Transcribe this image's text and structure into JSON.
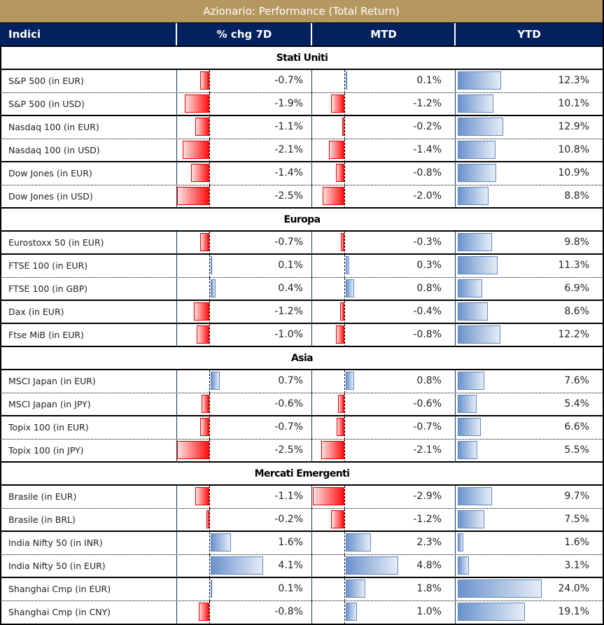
{
  "title": "Azionario: Performance (Total Return)",
  "columns": [
    "Indici",
    "% chg 7D",
    "MTD",
    "YTD"
  ],
  "colors": {
    "title_bg": "#b5985f",
    "header_bg": "#03215f",
    "negative": "#ff1010",
    "positive": "#6a92cc"
  },
  "sections": [
    {
      "name": "Stati Uniti",
      "rows": [
        {
          "name": "S&P 500 (in EUR)",
          "chg7d": -0.7,
          "chg7d_label": "-0.7%",
          "mtd": 0.1,
          "mtd_label": "0.1%",
          "ytd": 12.3,
          "ytd_label": "12.3%",
          "border": "dot"
        },
        {
          "name": "S&P 500 (in USD)",
          "chg7d": -1.9,
          "chg7d_label": "-1.9%",
          "mtd": -1.2,
          "mtd_label": "-1.2%",
          "ytd": 10.1,
          "ytd_label": "10.1%",
          "border": "solid"
        },
        {
          "name": "Nasdaq 100 (in EUR)",
          "chg7d": -1.1,
          "chg7d_label": "-1.1%",
          "mtd": -0.2,
          "mtd_label": "-0.2%",
          "ytd": 12.9,
          "ytd_label": "12.9%",
          "border": "dot"
        },
        {
          "name": "Nasdaq 100 (in USD)",
          "chg7d": -2.1,
          "chg7d_label": "-2.1%",
          "mtd": -1.4,
          "mtd_label": "-1.4%",
          "ytd": 10.8,
          "ytd_label": "10.8%",
          "border": "solid"
        },
        {
          "name": "Dow Jones (in EUR)",
          "chg7d": -1.4,
          "chg7d_label": "-1.4%",
          "mtd": -0.8,
          "mtd_label": "-0.8%",
          "ytd": 10.9,
          "ytd_label": "10.9%",
          "border": "dot"
        },
        {
          "name": "Dow Jones (in USD)",
          "chg7d": -2.5,
          "chg7d_label": "-2.5%",
          "mtd": -2.0,
          "mtd_label": "-2.0%",
          "ytd": 8.8,
          "ytd_label": "8.8%",
          "border": "solid"
        }
      ]
    },
    {
      "name": "Europa",
      "rows": [
        {
          "name": "Eurostoxx 50 (in EUR)",
          "chg7d": -0.7,
          "chg7d_label": "-0.7%",
          "mtd": -0.3,
          "mtd_label": "-0.3%",
          "ytd": 9.8,
          "ytd_label": "9.8%",
          "border": "solid"
        },
        {
          "name": "FTSE 100 (in EUR)",
          "chg7d": 0.1,
          "chg7d_label": "0.1%",
          "mtd": 0.3,
          "mtd_label": "0.3%",
          "ytd": 11.3,
          "ytd_label": "11.3%",
          "border": "dot"
        },
        {
          "name": "FTSE 100 (in GBP)",
          "chg7d": 0.4,
          "chg7d_label": "0.4%",
          "mtd": 0.8,
          "mtd_label": "0.8%",
          "ytd": 6.9,
          "ytd_label": "6.9%",
          "border": "solid"
        },
        {
          "name": "Dax (in EUR)",
          "chg7d": -1.2,
          "chg7d_label": "-1.2%",
          "mtd": -0.4,
          "mtd_label": "-0.4%",
          "ytd": 8.6,
          "ytd_label": "8.6%",
          "border": "solid"
        },
        {
          "name": "Ftse MiB (in EUR)",
          "chg7d": -1.0,
          "chg7d_label": "-1.0%",
          "mtd": -0.8,
          "mtd_label": "-0.8%",
          "ytd": 12.2,
          "ytd_label": "12.2%",
          "border": "solid"
        }
      ]
    },
    {
      "name": "Asia",
      "rows": [
        {
          "name": "MSCI Japan (in EUR)",
          "chg7d": 0.7,
          "chg7d_label": "0.7%",
          "mtd": 0.8,
          "mtd_label": "0.8%",
          "ytd": 7.6,
          "ytd_label": "7.6%",
          "border": "dot"
        },
        {
          "name": "MSCI Japan (in JPY)",
          "chg7d": -0.6,
          "chg7d_label": "-0.6%",
          "mtd": -0.6,
          "mtd_label": "-0.6%",
          "ytd": 5.4,
          "ytd_label": "5.4%",
          "border": "solid"
        },
        {
          "name": "Topix 100 (in EUR)",
          "chg7d": -0.7,
          "chg7d_label": "-0.7%",
          "mtd": -0.7,
          "mtd_label": "-0.7%",
          "ytd": 6.6,
          "ytd_label": "6.6%",
          "border": "dot"
        },
        {
          "name": "Topix 100 (in JPY)",
          "chg7d": -2.5,
          "chg7d_label": "-2.5%",
          "mtd": -2.1,
          "mtd_label": "-2.1%",
          "ytd": 5.5,
          "ytd_label": "5.5%",
          "border": "solid"
        }
      ]
    },
    {
      "name": "Mercati Emergenti",
      "rows": [
        {
          "name": "Brasile (in EUR)",
          "chg7d": -1.1,
          "chg7d_label": "-1.1%",
          "mtd": -2.9,
          "mtd_label": "-2.9%",
          "ytd": 9.7,
          "ytd_label": "9.7%",
          "border": "dot"
        },
        {
          "name": "Brasile (in BRL)",
          "chg7d": -0.2,
          "chg7d_label": "-0.2%",
          "mtd": -1.2,
          "mtd_label": "-1.2%",
          "ytd": 7.5,
          "ytd_label": "7.5%",
          "border": "solid"
        },
        {
          "name": "India Nifty 50 (in INR)",
          "chg7d": 1.6,
          "chg7d_label": "1.6%",
          "mtd": 2.3,
          "mtd_label": "2.3%",
          "ytd": 1.6,
          "ytd_label": "1.6%",
          "border": "dot"
        },
        {
          "name": "India Nifty 50 (in EUR)",
          "chg7d": 4.1,
          "chg7d_label": "4.1%",
          "mtd": 4.8,
          "mtd_label": "4.8%",
          "ytd": 3.1,
          "ytd_label": "3.1%",
          "border": "solid"
        },
        {
          "name": "Shanghai Cmp (in EUR)",
          "chg7d": 0.1,
          "chg7d_label": "0.1%",
          "mtd": 1.8,
          "mtd_label": "1.8%",
          "ytd": 24.0,
          "ytd_label": "24.0%",
          "border": "dot"
        },
        {
          "name": "Shanghai Cmp (in CNY)",
          "chg7d": -0.8,
          "chg7d_label": "-0.8%",
          "mtd": 1.0,
          "mtd_label": "1.0%",
          "ytd": 19.1,
          "ytd_label": "19.1%",
          "border": "none"
        }
      ]
    }
  ]
}
